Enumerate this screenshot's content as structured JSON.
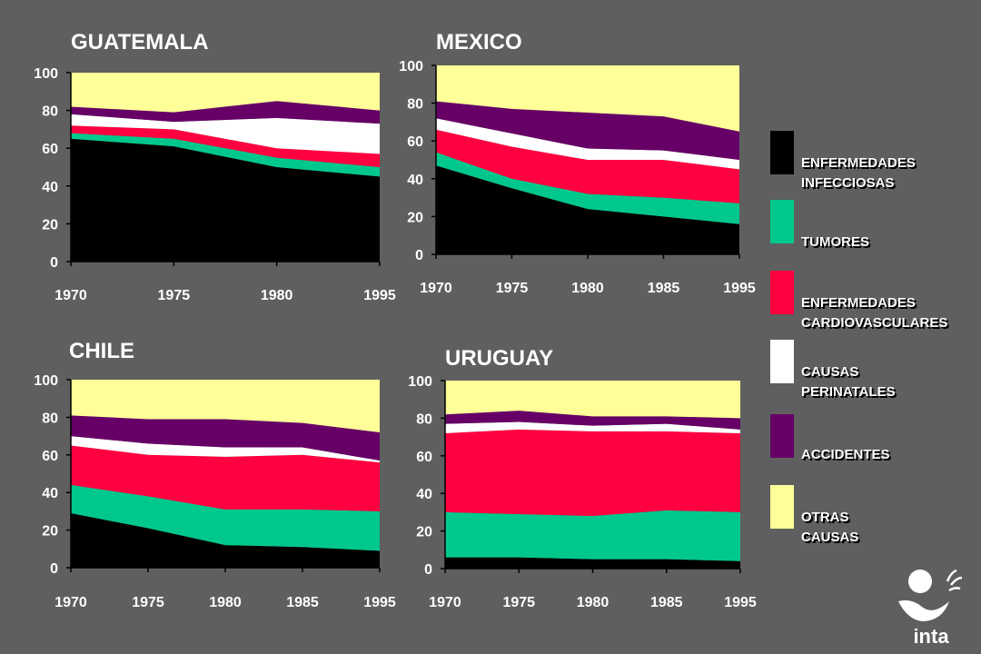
{
  "colors": {
    "background": "#5f5f5f",
    "infecciosas": "#000000",
    "tumores": "#00c88c",
    "cardiovasculares": "#ff0040",
    "perinatales": "#ffffff",
    "accidentes": "#660066",
    "otras": "#ffff99",
    "text": "#ffffff"
  },
  "legend": {
    "items": [
      {
        "key": "infecciosas",
        "line1": "ENFERMEDADES",
        "line2": "INFECCIOSAS"
      },
      {
        "key": "tumores",
        "line1": "TUMORES",
        "line2": ""
      },
      {
        "key": "cardiovasculares",
        "line1": "ENFERMEDADES",
        "line2": "CARDIOVASCULARES"
      },
      {
        "key": "perinatales",
        "line1": "CAUSAS",
        "line2": "PERINATALES"
      },
      {
        "key": "accidentes",
        "line1": "ACCIDENTES",
        "line2": ""
      },
      {
        "key": "otras",
        "line1": "OTRAS",
        "line2": "CAUSAS"
      }
    ]
  },
  "logo": {
    "text": "inta"
  },
  "chart_data": [
    {
      "type": "area",
      "stacked": true,
      "title": "GUATEMALA",
      "categories": [
        "1970",
        "1975",
        "1980",
        "1995"
      ],
      "ylim": [
        0,
        100
      ],
      "yticks": [
        0,
        20,
        40,
        60,
        80,
        100
      ],
      "series": [
        {
          "name": "ENFERMEDADES INFECCIOSAS",
          "key": "infecciosas",
          "values": [
            65,
            61,
            50,
            45
          ]
        },
        {
          "name": "TUMORES",
          "key": "tumores",
          "values": [
            3,
            4,
            5,
            5
          ]
        },
        {
          "name": "ENFERMEDADES CARDIOVASCULARES",
          "key": "cardiovasculares",
          "values": [
            4,
            5,
            5,
            7
          ]
        },
        {
          "name": "CAUSAS PERINATALES",
          "key": "perinatales",
          "values": [
            6,
            4,
            16,
            16
          ]
        },
        {
          "name": "ACCIDENTES",
          "key": "accidentes",
          "values": [
            4,
            5,
            9,
            7
          ]
        },
        {
          "name": "OTRAS CAUSAS",
          "key": "otras",
          "values": [
            18,
            21,
            15,
            20
          ]
        }
      ]
    },
    {
      "type": "area",
      "stacked": true,
      "title": "MEXICO",
      "categories": [
        "1970",
        "1975",
        "1980",
        "1985",
        "1995"
      ],
      "ylim": [
        0,
        100
      ],
      "yticks": [
        0,
        20,
        40,
        60,
        80,
        100
      ],
      "series": [
        {
          "name": "ENFERMEDADES INFECCIOSAS",
          "key": "infecciosas",
          "values": [
            47,
            35,
            24,
            20,
            16
          ]
        },
        {
          "name": "TUMORES",
          "key": "tumores",
          "values": [
            7,
            5,
            8,
            10,
            11
          ]
        },
        {
          "name": "ENFERMEDADES CARDIOVASCULARES",
          "key": "cardiovasculares",
          "values": [
            12,
            17,
            18,
            20,
            18
          ]
        },
        {
          "name": "CAUSAS PERINATALES",
          "key": "perinatales",
          "values": [
            6,
            7,
            6,
            5,
            5
          ]
        },
        {
          "name": "ACCIDENTES",
          "key": "accidentes",
          "values": [
            9,
            13,
            19,
            18,
            15
          ]
        },
        {
          "name": "OTRAS CAUSAS",
          "key": "otras",
          "values": [
            19,
            23,
            25,
            27,
            35
          ]
        }
      ]
    },
    {
      "type": "area",
      "stacked": true,
      "title": "CHILE",
      "categories": [
        "1970",
        "1975",
        "1980",
        "1985",
        "1995"
      ],
      "ylim": [
        0,
        100
      ],
      "yticks": [
        0,
        20,
        40,
        60,
        80,
        100
      ],
      "series": [
        {
          "name": "ENFERMEDADES INFECCIOSAS",
          "key": "infecciosas",
          "values": [
            29,
            21,
            12,
            11,
            9
          ]
        },
        {
          "name": "TUMORES",
          "key": "tumores",
          "values": [
            15,
            17,
            19,
            20,
            21
          ]
        },
        {
          "name": "ENFERMEDADES CARDIOVASCULARES",
          "key": "cardiovasculares",
          "values": [
            21,
            22,
            28,
            29,
            26
          ]
        },
        {
          "name": "CAUSAS PERINATALES",
          "key": "perinatales",
          "values": [
            5,
            6,
            5,
            4,
            1
          ]
        },
        {
          "name": "ACCIDENTES",
          "key": "accidentes",
          "values": [
            11,
            13,
            15,
            13,
            15
          ]
        },
        {
          "name": "OTRAS CAUSAS",
          "key": "otras",
          "values": [
            19,
            21,
            21,
            23,
            28
          ]
        }
      ]
    },
    {
      "type": "area",
      "stacked": true,
      "title": "URUGUAY",
      "categories": [
        "1970",
        "1975",
        "1980",
        "1985",
        "1995"
      ],
      "ylim": [
        0,
        100
      ],
      "yticks": [
        0,
        20,
        40,
        60,
        80,
        100
      ],
      "series": [
        {
          "name": "ENFERMEDADES INFECCIOSAS",
          "key": "infecciosas",
          "values": [
            6,
            6,
            5,
            5,
            4
          ]
        },
        {
          "name": "TUMORES",
          "key": "tumores",
          "values": [
            24,
            23,
            23,
            26,
            26
          ]
        },
        {
          "name": "ENFERMEDADES CARDIOVASCULARES",
          "key": "cardiovasculares",
          "values": [
            42,
            45,
            45,
            42,
            42
          ]
        },
        {
          "name": "CAUSAS PERINATALES",
          "key": "perinatales",
          "values": [
            5,
            4,
            3,
            4,
            2
          ]
        },
        {
          "name": "ACCIDENTES",
          "key": "accidentes",
          "values": [
            5,
            6,
            5,
            4,
            6
          ]
        },
        {
          "name": "OTRAS CAUSAS",
          "key": "otras",
          "values": [
            18,
            16,
            19,
            19,
            20
          ]
        }
      ]
    }
  ]
}
